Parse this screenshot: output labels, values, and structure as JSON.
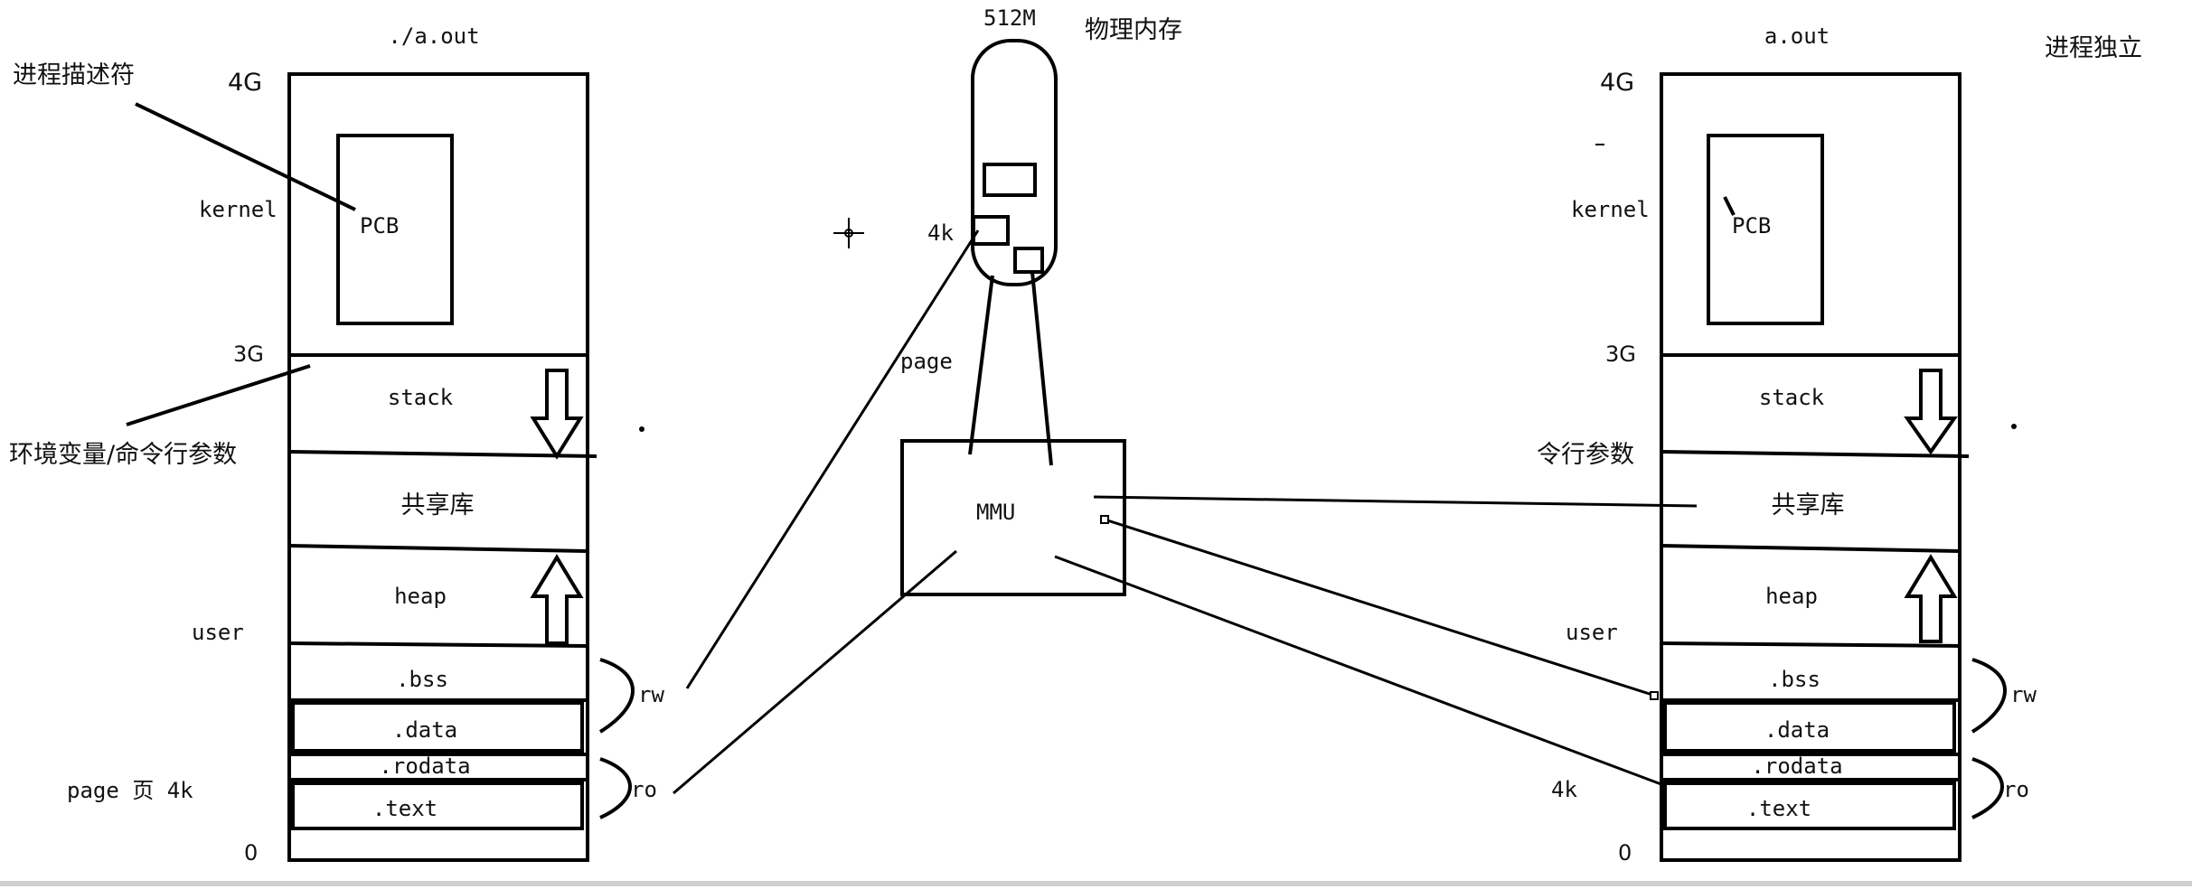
{
  "left_process": {
    "file_label": "./a.out",
    "label_4g": "4G",
    "label_3g": "3G",
    "label_0": "0",
    "kernel_label": "kernel",
    "user_label": "user",
    "pcb_label": "PCB",
    "annotation_pcb": "进程描述符",
    "annotation_env": "环境变量/命令行参数",
    "page_note": "page 页 4k",
    "segments": {
      "stack": "stack",
      "shared_lib": "共享库",
      "heap": "heap",
      "bss": ".bss",
      "data": ".data",
      "rodata": ".rodata",
      "text": ".text"
    },
    "rw_label": "rw",
    "ro_label": "ro"
  },
  "right_process": {
    "file_label": "a.out",
    "label_4g": "4G",
    "label_3g": "3G",
    "label_0": "0",
    "kernel_label": "kernel",
    "user_label": "user",
    "pcb_label": "PCB",
    "annotation_isolated": "进程独立",
    "annotation_cmd": "令行参数",
    "page_note": "4k",
    "segments": {
      "stack": "stack",
      "shared_lib": "共享库",
      "heap": "heap",
      "bss": ".bss",
      "data": ".data",
      "rodata": ".rodata",
      "text": ".text"
    },
    "rw_label": "rw",
    "ro_label": "ro"
  },
  "physical_memory": {
    "size_label": "512M",
    "title": "物理内存",
    "block_label": "4k",
    "page_label": "page"
  },
  "mmu": {
    "label": "MMU"
  }
}
